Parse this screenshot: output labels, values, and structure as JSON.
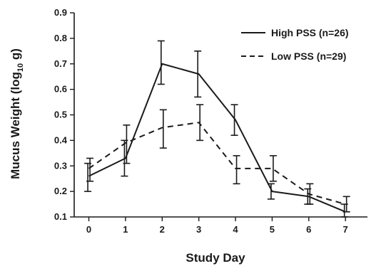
{
  "chart_data": {
    "type": "line",
    "xlabel": "Study Day",
    "ylabel_main": "Mucus Weight (log",
    "ylabel_sub": "10",
    "ylabel_end": " g)",
    "x": [
      0,
      1,
      2,
      3,
      4,
      5,
      6,
      7
    ],
    "x_tick_labels": [
      "0",
      "1",
      "2",
      "3",
      "4",
      "5",
      "6",
      "7"
    ],
    "y_tick_values": [
      0.1,
      0.2,
      0.3,
      0.4,
      0.5,
      0.6,
      0.7,
      0.8,
      0.9
    ],
    "y_tick_labels": [
      "0.1",
      "0.2",
      "0.3",
      "0.4",
      "0.5",
      "0.6",
      "0.7",
      "0.8",
      "0.9"
    ],
    "xlim": [
      -0.4,
      7.6
    ],
    "ylim": [
      0.1,
      0.9
    ],
    "legend_position": "top-right",
    "grid": false,
    "series": [
      {
        "name": "High PSS (n=26)",
        "style": "solid",
        "values": [
          0.26,
          0.33,
          0.7,
          0.66,
          0.48,
          0.2,
          0.18,
          0.12
        ],
        "err_low": [
          0.2,
          0.26,
          0.62,
          0.57,
          0.42,
          0.17,
          0.15,
          0.1
        ],
        "err_high": [
          0.31,
          0.4,
          0.79,
          0.75,
          0.54,
          0.23,
          0.21,
          0.15
        ]
      },
      {
        "name": "Low PSS (n=29)",
        "style": "dashed",
        "values": [
          0.29,
          0.39,
          0.45,
          0.47,
          0.29,
          0.29,
          0.19,
          0.15
        ],
        "err_low": [
          0.24,
          0.31,
          0.37,
          0.4,
          0.23,
          0.24,
          0.15,
          0.12
        ],
        "err_high": [
          0.33,
          0.46,
          0.52,
          0.54,
          0.34,
          0.34,
          0.23,
          0.18
        ]
      }
    ]
  }
}
